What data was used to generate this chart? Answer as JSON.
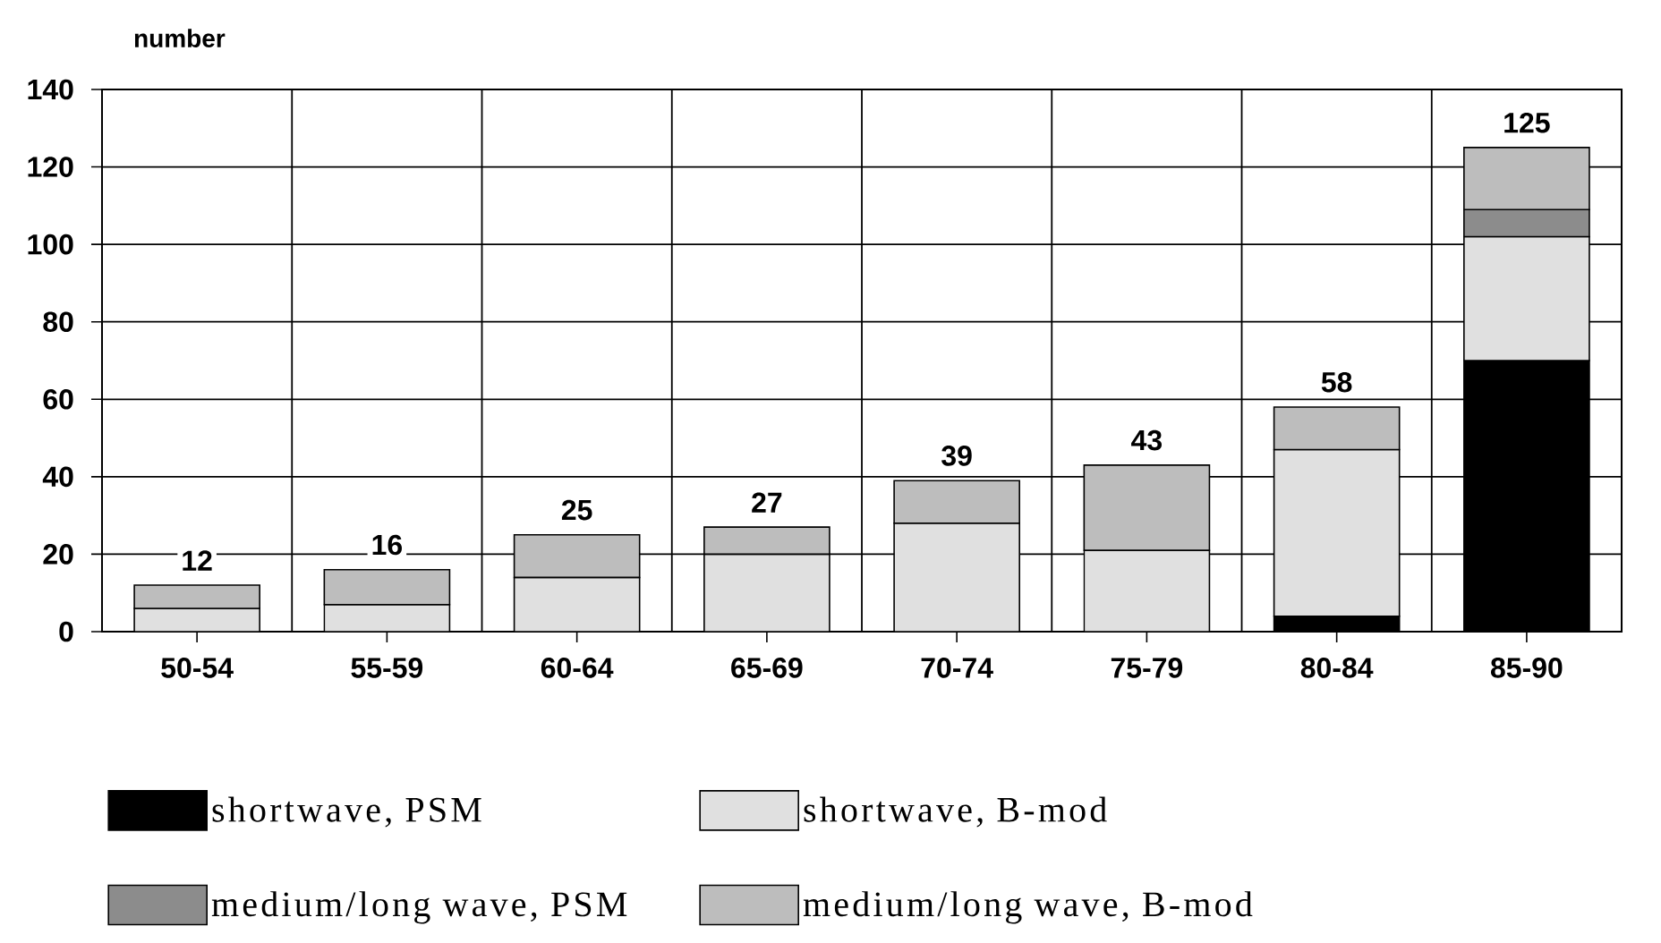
{
  "chart_data": {
    "type": "bar",
    "stacked": true,
    "ylabel": "number",
    "categories": [
      "50-54",
      "55-59",
      "60-64",
      "65-69",
      "70-74",
      "75-79",
      "80-84",
      "85-90"
    ],
    "series": [
      {
        "name": "shortwave, PSM",
        "color": "#000000",
        "values": [
          null,
          null,
          null,
          null,
          null,
          null,
          4,
          70
        ]
      },
      {
        "name": "shortwave, B-mod",
        "color": "#e0e0e0",
        "values": [
          6,
          7,
          14,
          20,
          28,
          21,
          43,
          32
        ]
      },
      {
        "name": "medium/long wave, PSM",
        "color": "#8c8c8c",
        "values": [
          null,
          null,
          null,
          null,
          null,
          null,
          null,
          7
        ]
      },
      {
        "name": "medium/long wave, B-mod",
        "color": "#bdbdbd",
        "values": [
          6,
          9,
          11,
          7,
          11,
          22,
          11,
          16
        ]
      }
    ],
    "ylim": [
      0,
      140
    ],
    "yticks": [
      0,
      20,
      40,
      60,
      80,
      100,
      120,
      140
    ],
    "grid": true,
    "legend": "bottom",
    "totals": [
      "12",
      "16",
      "25",
      "27",
      "39",
      "43",
      "58",
      "125"
    ]
  }
}
